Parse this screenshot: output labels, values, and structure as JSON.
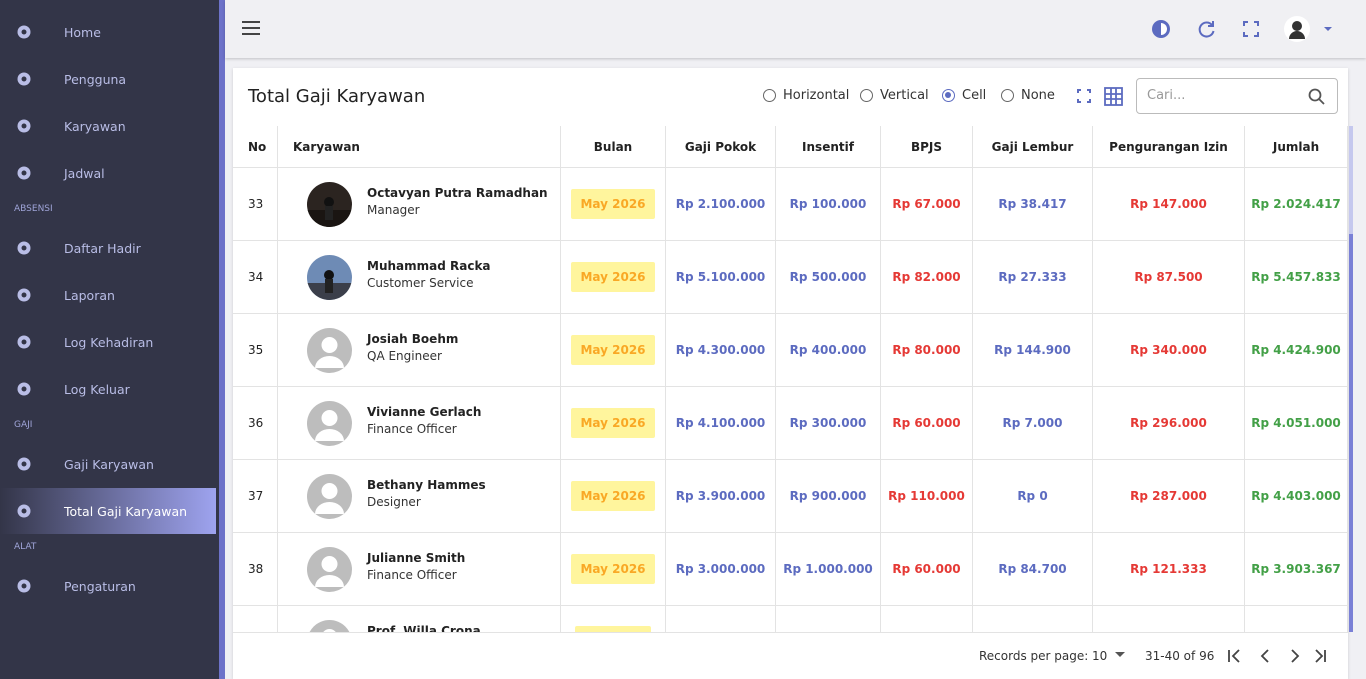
{
  "sidebar": {
    "sections": [
      {
        "items": [
          "Home",
          "Pengguna",
          "Karyawan",
          "Jadwal"
        ]
      },
      {
        "label": "ABSENSI",
        "items": [
          "Daftar Hadir",
          "Laporan",
          "Log Kehadiran",
          "Log Keluar"
        ]
      },
      {
        "label": "GAJI",
        "items": [
          "Gaji Karyawan",
          "Total Gaji Karyawan"
        ]
      },
      {
        "label": "ALAT",
        "items": [
          "Pengaturan"
        ]
      }
    ],
    "active": "Total Gaji Karyawan"
  },
  "card": {
    "title": "Total Gaji Karyawan",
    "options": [
      "Horizontal",
      "Vertical",
      "Cell",
      "None"
    ],
    "selected_option": "Cell",
    "search_placeholder": "Cari..."
  },
  "table": {
    "headers": [
      "No",
      "Karyawan",
      "Bulan",
      "Gaji Pokok",
      "Insentif",
      "BPJS",
      "Gaji Lembur",
      "Pengurangan Izin",
      "Jumlah"
    ],
    "rows": [
      {
        "no": "33",
        "name": "Octavyan Putra Ramadhan",
        "role": "Manager",
        "month": "May 2026",
        "values": [
          "Rp 2.100.000",
          "Rp 100.000",
          "Rp 67.000",
          "Rp 38.417",
          "Rp 147.000",
          "Rp 2.024.417"
        ]
      },
      {
        "no": "34",
        "name": "Muhammad Racka",
        "role": "Customer Service",
        "month": "May 2026",
        "values": [
          "Rp 5.100.000",
          "Rp 500.000",
          "Rp 82.000",
          "Rp 27.333",
          "Rp 87.500",
          "Rp 5.457.833"
        ]
      },
      {
        "no": "35",
        "name": "Josiah Boehm",
        "role": "QA Engineer",
        "month": "May 2026",
        "values": [
          "Rp 4.300.000",
          "Rp 400.000",
          "Rp 80.000",
          "Rp 144.900",
          "Rp 340.000",
          "Rp 4.424.900"
        ]
      },
      {
        "no": "36",
        "name": "Vivianne Gerlach",
        "role": "Finance Officer",
        "month": "May 2026",
        "values": [
          "Rp 4.100.000",
          "Rp 300.000",
          "Rp 60.000",
          "Rp 7.000",
          "Rp 296.000",
          "Rp 4.051.000"
        ]
      },
      {
        "no": "37",
        "name": "Bethany Hammes",
        "role": "Designer",
        "month": "May 2026",
        "values": [
          "Rp 3.900.000",
          "Rp 900.000",
          "Rp 110.000",
          "Rp 0",
          "Rp 287.000",
          "Rp 4.403.000"
        ]
      },
      {
        "no": "38",
        "name": "Julianne Smith",
        "role": "Finance Officer",
        "month": "May 2026",
        "values": [
          "Rp 3.000.000",
          "Rp 1.000.000",
          "Rp 60.000",
          "Rp 84.700",
          "Rp 121.333",
          "Rp 3.903.367"
        ]
      },
      {
        "name": "Prof. Willa Crona"
      }
    ]
  },
  "footer": {
    "records_label": "Records per page:",
    "per_page": "10",
    "range": "31-40 of 96"
  }
}
